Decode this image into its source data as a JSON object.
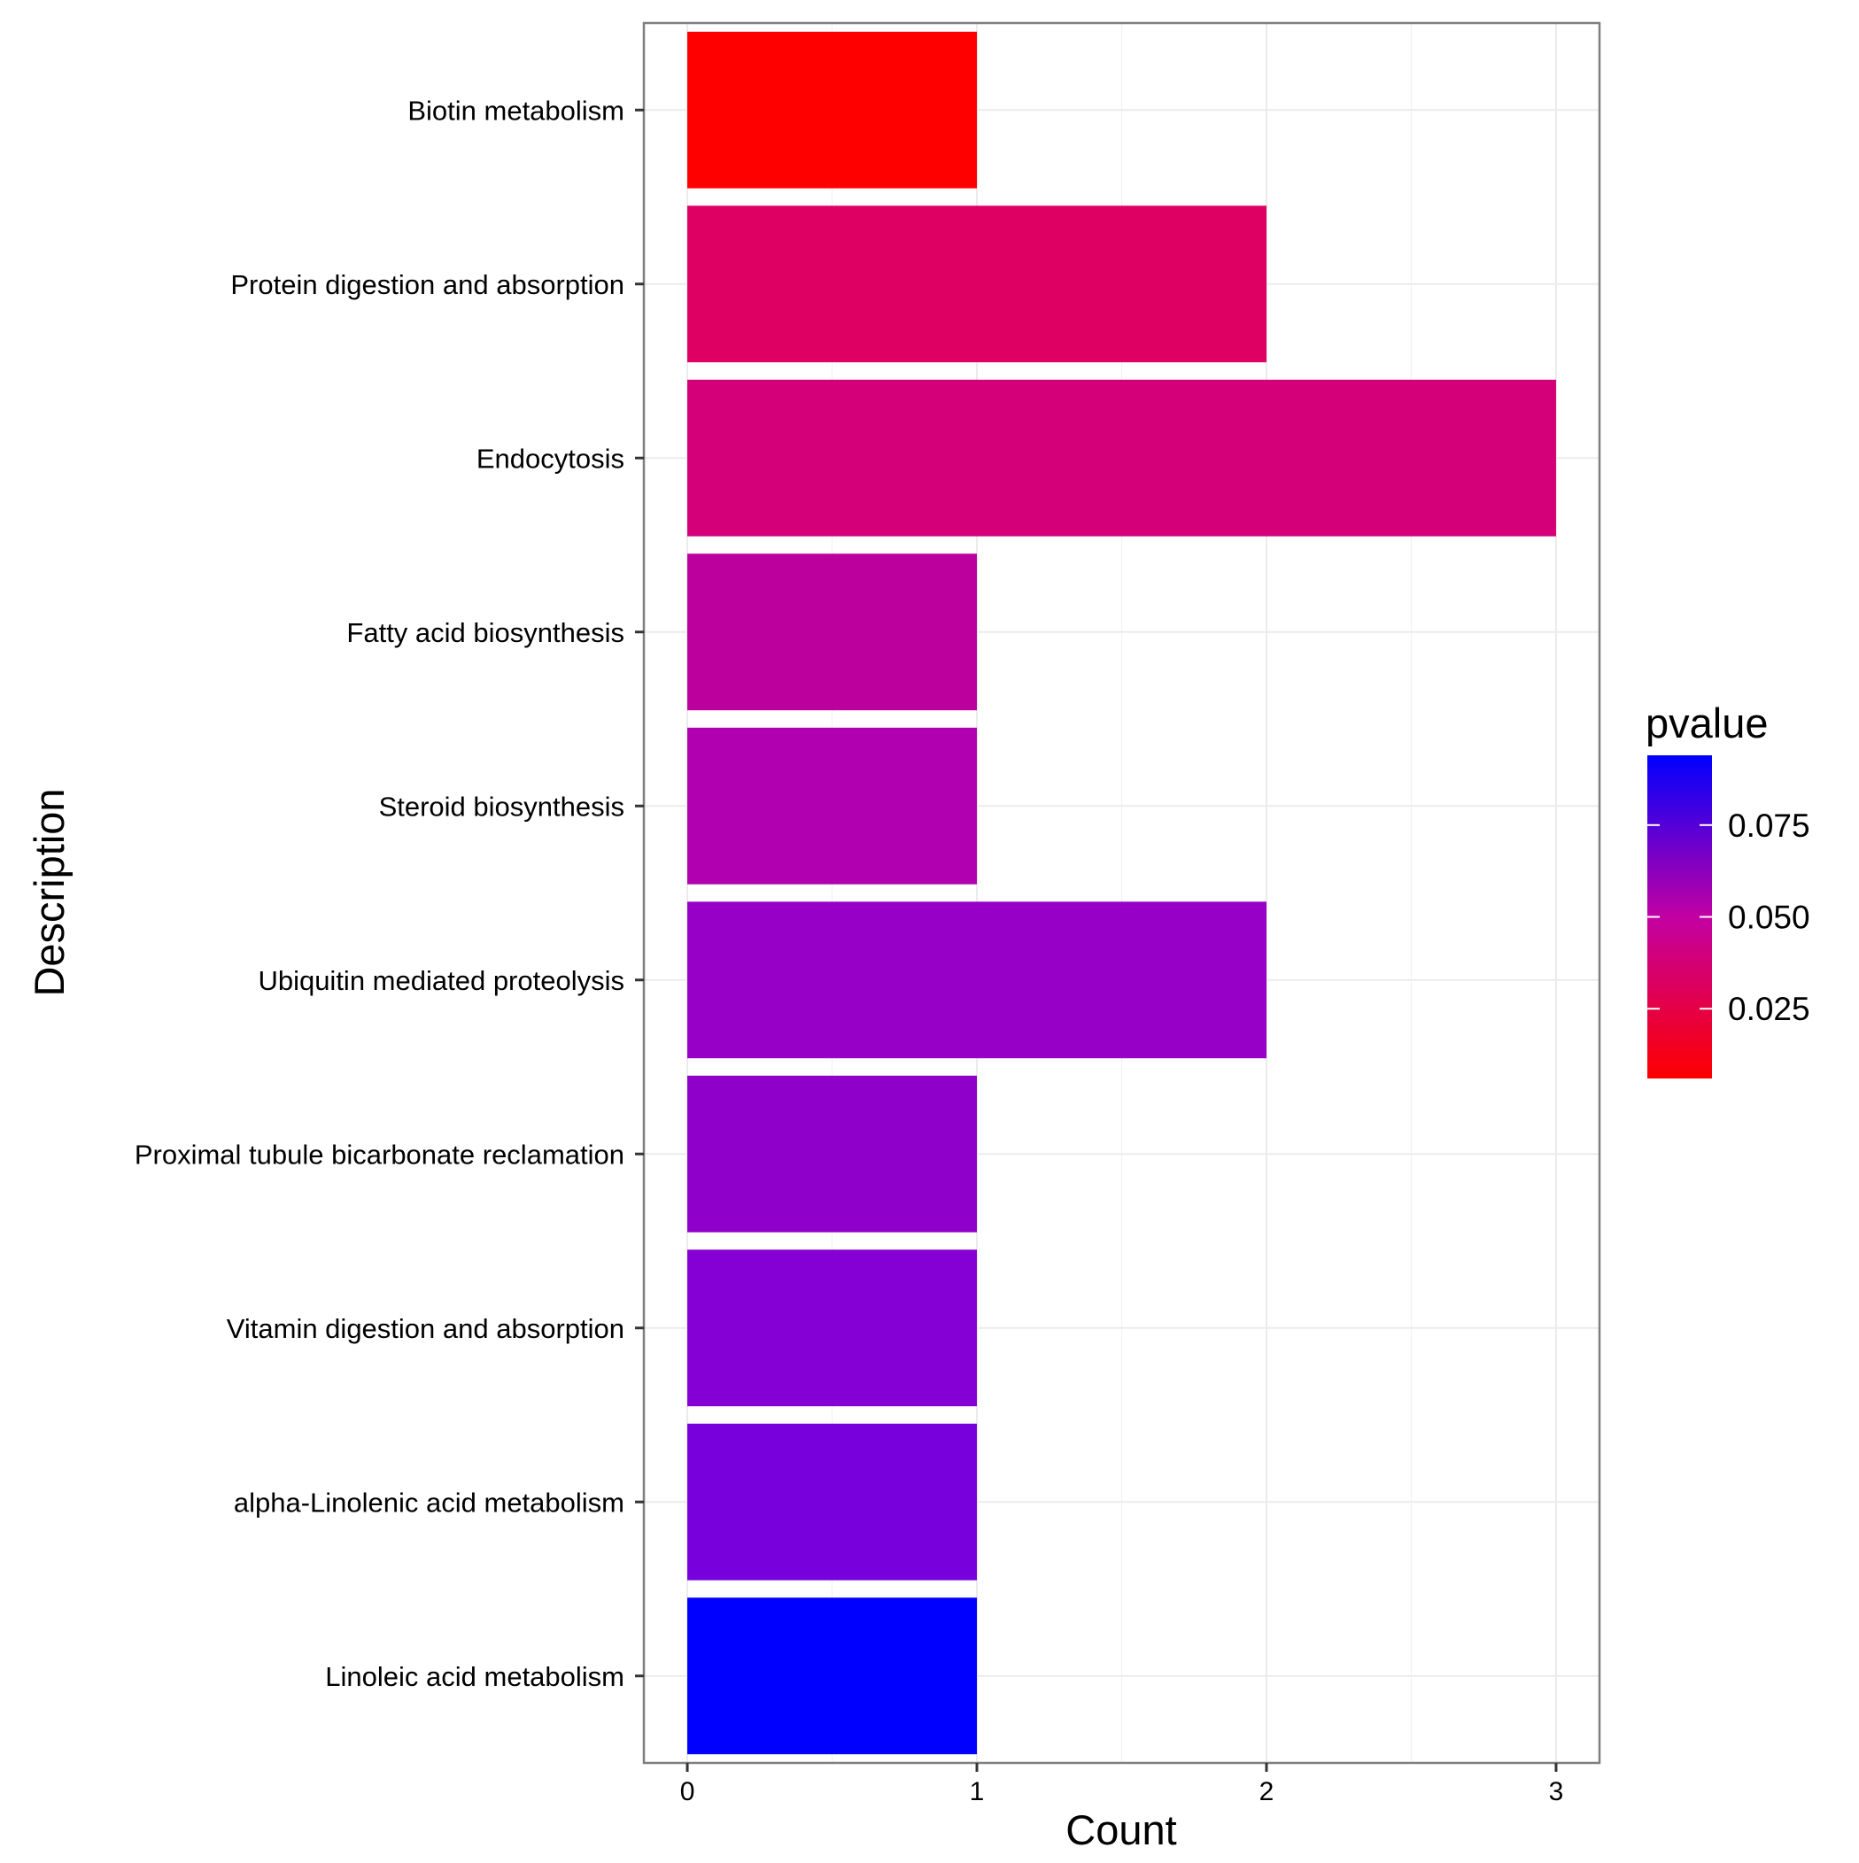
{
  "chart_data": {
    "type": "bar",
    "orientation": "horizontal",
    "title": "",
    "xlabel": "Count",
    "ylabel": "Description",
    "xlim": [
      -0.15,
      3.15
    ],
    "x_ticks": [
      "0",
      "1",
      "2",
      "3"
    ],
    "x_tick_values": [
      0,
      1,
      2,
      3
    ],
    "grid": true,
    "legend_position": "right",
    "categories": [
      "Biotin metabolism",
      "Protein digestion and absorption",
      "Endocytosis",
      "Fatty acid biosynthesis",
      "Steroid biosynthesis",
      "Ubiquitin mediated proteolysis",
      "Proximal tubule bicarbonate reclamation",
      "Vitamin digestion and absorption",
      "alpha-Linolenic acid metabolism",
      "Linoleic acid metabolism"
    ],
    "values": [
      1,
      2,
      3,
      1,
      1,
      2,
      1,
      1,
      1,
      1
    ],
    "pvalue": [
      0.006,
      0.033,
      0.039,
      0.048,
      0.053,
      0.066,
      0.069,
      0.072,
      0.076,
      0.094
    ],
    "bar_colors": [
      "#ff0000",
      "#df0064",
      "#d4007a",
      "#bc009e",
      "#b000af",
      "#9700c6",
      "#8f00ca",
      "#8500d4",
      "#7800dd",
      "#0000ff"
    ],
    "colorbar": {
      "title": "pvalue",
      "low_color": "#ff0000",
      "high_color": "#0000ff",
      "min": 0.006,
      "max": 0.094,
      "ticks": [
        "0.025",
        "0.050",
        "0.075"
      ],
      "tick_values": [
        0.025,
        0.05,
        0.075
      ]
    }
  }
}
